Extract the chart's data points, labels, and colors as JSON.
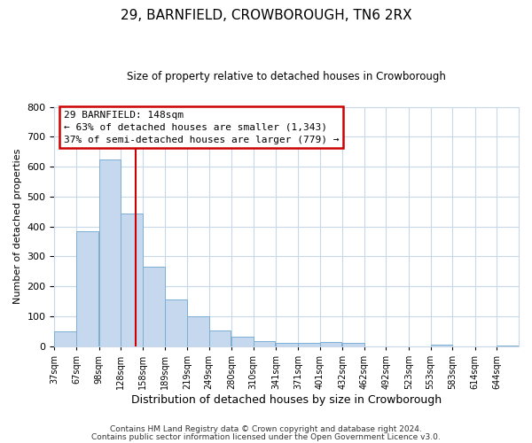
{
  "title": "29, BARNFIELD, CROWBOROUGH, TN6 2RX",
  "subtitle": "Size of property relative to detached houses in Crowborough",
  "xlabel": "Distribution of detached houses by size in Crowborough",
  "ylabel": "Number of detached properties",
  "bar_color": "#c5d8ed",
  "bar_edge_color": "#7bafd4",
  "background_color": "#ffffff",
  "grid_color": "#c8d8e8",
  "vline_color": "#cc0000",
  "vline_x": 148,
  "categories": [
    "37sqm",
    "67sqm",
    "98sqm",
    "128sqm",
    "158sqm",
    "189sqm",
    "219sqm",
    "249sqm",
    "280sqm",
    "310sqm",
    "341sqm",
    "371sqm",
    "401sqm",
    "432sqm",
    "462sqm",
    "492sqm",
    "523sqm",
    "553sqm",
    "583sqm",
    "614sqm",
    "644sqm"
  ],
  "bin_edges": [
    37,
    67,
    98,
    128,
    158,
    189,
    219,
    249,
    280,
    310,
    341,
    371,
    401,
    432,
    462,
    492,
    523,
    553,
    583,
    614,
    644
  ],
  "bin_width": 30,
  "values": [
    50,
    385,
    623,
    443,
    265,
    155,
    98,
    51,
    30,
    17,
    10,
    10,
    12,
    10,
    0,
    0,
    0,
    5,
    0,
    0,
    2
  ],
  "ylim": [
    0,
    800
  ],
  "yticks": [
    0,
    100,
    200,
    300,
    400,
    500,
    600,
    700,
    800
  ],
  "annotation_title": "29 BARNFIELD: 148sqm",
  "annotation_line1": "← 63% of detached houses are smaller (1,343)",
  "annotation_line2": "37% of semi-detached houses are larger (779) →",
  "annotation_box_color": "#ffffff",
  "annotation_box_edge": "#cc0000",
  "footnote1": "Contains HM Land Registry data © Crown copyright and database right 2024.",
  "footnote2": "Contains public sector information licensed under the Open Government Licence v3.0."
}
